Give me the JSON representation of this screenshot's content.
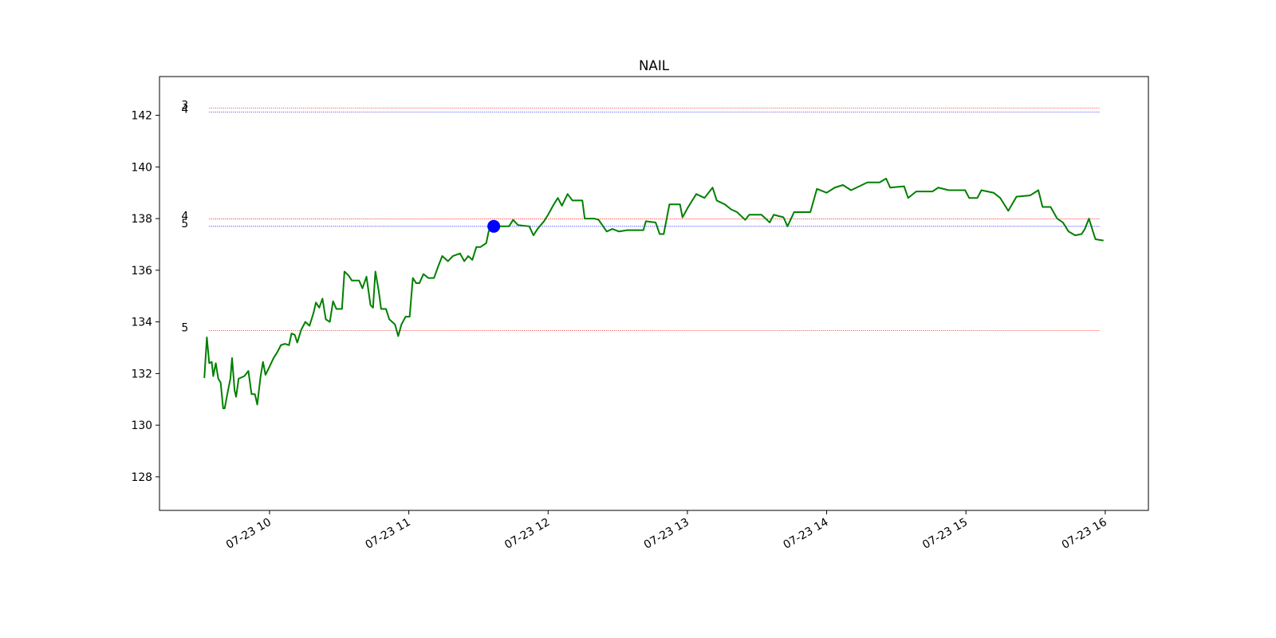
{
  "chart_data": {
    "type": "line",
    "title": "NAIL",
    "color": "#008000",
    "x": [
      9.532,
      9.55,
      9.567,
      9.585,
      9.596,
      9.614,
      9.632,
      9.649,
      9.667,
      9.678,
      9.702,
      9.719,
      9.731,
      9.749,
      9.76,
      9.778,
      9.819,
      9.848,
      9.871,
      9.895,
      9.912,
      9.936,
      9.953,
      9.971,
      9.994,
      10.029,
      10.053,
      10.082,
      10.111,
      10.14,
      10.158,
      10.181,
      10.199,
      10.228,
      10.257,
      10.287,
      10.316,
      10.333,
      10.357,
      10.38,
      10.404,
      10.433,
      10.456,
      10.48,
      10.52,
      10.538,
      10.567,
      10.591,
      10.643,
      10.667,
      10.696,
      10.725,
      10.743,
      10.76,
      10.784,
      10.801,
      10.836,
      10.86,
      10.901,
      10.924,
      10.947,
      10.977,
      11.006,
      11.029,
      11.053,
      11.076,
      11.105,
      11.14,
      11.181,
      11.211,
      11.24,
      11.281,
      11.316,
      11.368,
      11.398,
      11.427,
      11.456,
      11.485,
      11.515,
      11.556,
      11.573,
      11.602,
      11.632,
      11.719,
      11.749,
      11.784,
      11.865,
      11.895,
      11.924,
      11.971,
      12.0,
      12.041,
      12.07,
      12.099,
      12.14,
      12.175,
      12.246,
      12.263,
      12.333,
      12.363,
      12.421,
      12.462,
      12.509,
      12.567,
      12.596,
      12.684,
      12.702,
      12.772,
      12.801,
      12.83,
      12.871,
      12.947,
      12.965,
      13.006,
      13.064,
      13.123,
      13.181,
      13.211,
      13.269,
      13.316,
      13.357,
      13.415,
      13.444,
      13.532,
      13.591,
      13.62,
      13.69,
      13.719,
      13.766,
      13.883,
      13.93,
      14.0,
      14.058,
      14.117,
      14.175,
      14.234,
      14.292,
      14.38,
      14.427,
      14.456,
      14.556,
      14.585,
      14.643,
      14.76,
      14.801,
      14.877,
      14.994,
      15.023,
      15.082,
      15.111,
      15.199,
      15.246,
      15.304,
      15.363,
      15.462,
      15.52,
      15.55,
      15.608,
      15.655,
      15.696,
      15.737,
      15.784,
      15.83,
      15.854,
      15.883,
      15.912,
      15.93,
      15.988
    ],
    "values": [
      131.83,
      133.4,
      132.4,
      132.45,
      131.9,
      132.4,
      131.8,
      131.65,
      130.65,
      130.65,
      131.35,
      131.8,
      132.6,
      131.35,
      131.1,
      131.8,
      131.9,
      132.1,
      131.2,
      131.2,
      130.8,
      131.9,
      132.45,
      131.95,
      132.2,
      132.6,
      132.8,
      133.1,
      133.15,
      133.1,
      133.55,
      133.5,
      133.2,
      133.7,
      134.0,
      133.85,
      134.35,
      134.75,
      134.55,
      134.9,
      134.1,
      134.0,
      134.8,
      134.5,
      134.5,
      135.95,
      135.8,
      135.6,
      135.6,
      135.3,
      135.75,
      134.65,
      134.55,
      135.95,
      135.2,
      134.5,
      134.5,
      134.1,
      133.9,
      133.45,
      133.9,
      134.2,
      134.2,
      135.7,
      135.5,
      135.5,
      135.85,
      135.7,
      135.7,
      136.15,
      136.55,
      136.35,
      136.55,
      136.65,
      136.35,
      136.55,
      136.4,
      136.9,
      136.9,
      137.05,
      137.5,
      137.75,
      137.7,
      137.7,
      137.95,
      137.75,
      137.7,
      137.35,
      137.6,
      137.9,
      138.15,
      138.55,
      138.8,
      138.5,
      138.95,
      138.7,
      138.7,
      138.0,
      138.0,
      137.95,
      137.5,
      137.6,
      137.5,
      137.55,
      137.55,
      137.55,
      137.9,
      137.85,
      137.4,
      137.4,
      138.55,
      138.55,
      138.05,
      138.45,
      138.95,
      138.8,
      139.2,
      138.7,
      138.55,
      138.35,
      138.25,
      137.95,
      138.15,
      138.15,
      137.85,
      138.15,
      138.05,
      137.7,
      138.25,
      138.25,
      139.15,
      139.0,
      139.2,
      139.3,
      139.1,
      139.25,
      139.4,
      139.4,
      139.55,
      139.2,
      139.25,
      138.8,
      139.05,
      139.05,
      139.2,
      139.1,
      139.1,
      138.8,
      138.8,
      139.1,
      139.0,
      138.8,
      138.3,
      138.85,
      138.9,
      139.1,
      138.45,
      138.45,
      138.0,
      137.85,
      137.5,
      137.35,
      137.4,
      137.6,
      138.0,
      137.5,
      137.2,
      137.15
    ],
    "xlim": [
      9.21,
      16.31
    ],
    "xticks": [
      {
        "value": 10,
        "label": "07-23 10"
      },
      {
        "value": 11,
        "label": "07-23 11"
      },
      {
        "value": 12,
        "label": "07-23 12"
      },
      {
        "value": 13,
        "label": "07-23 13"
      },
      {
        "value": 14,
        "label": "07-23 14"
      },
      {
        "value": 15,
        "label": "07-23 15"
      },
      {
        "value": 16,
        "label": "07-23 16"
      }
    ],
    "ylim": [
      126.7,
      143.5
    ],
    "yticks": [
      128,
      130,
      132,
      134,
      136,
      138,
      140,
      142
    ],
    "hlines": [
      {
        "value": 142.28,
        "color": "red",
        "label": "3",
        "xmin": 9.567,
        "xmax": 15.959
      },
      {
        "value": 142.13,
        "color": "blue",
        "label": "4",
        "xmin": 9.567,
        "xmax": 15.959
      },
      {
        "value": 137.99,
        "color": "red",
        "label": "4",
        "xmin": 9.567,
        "xmax": 15.959
      },
      {
        "value": 137.7,
        "color": "blue",
        "label": "5",
        "xmin": 9.567,
        "xmax": 15.959
      },
      {
        "value": 133.66,
        "color": "red",
        "label": "5",
        "xmin": 9.567,
        "xmax": 15.959
      }
    ],
    "marker": {
      "x": 11.61,
      "y": 137.7,
      "color": "blue"
    }
  }
}
